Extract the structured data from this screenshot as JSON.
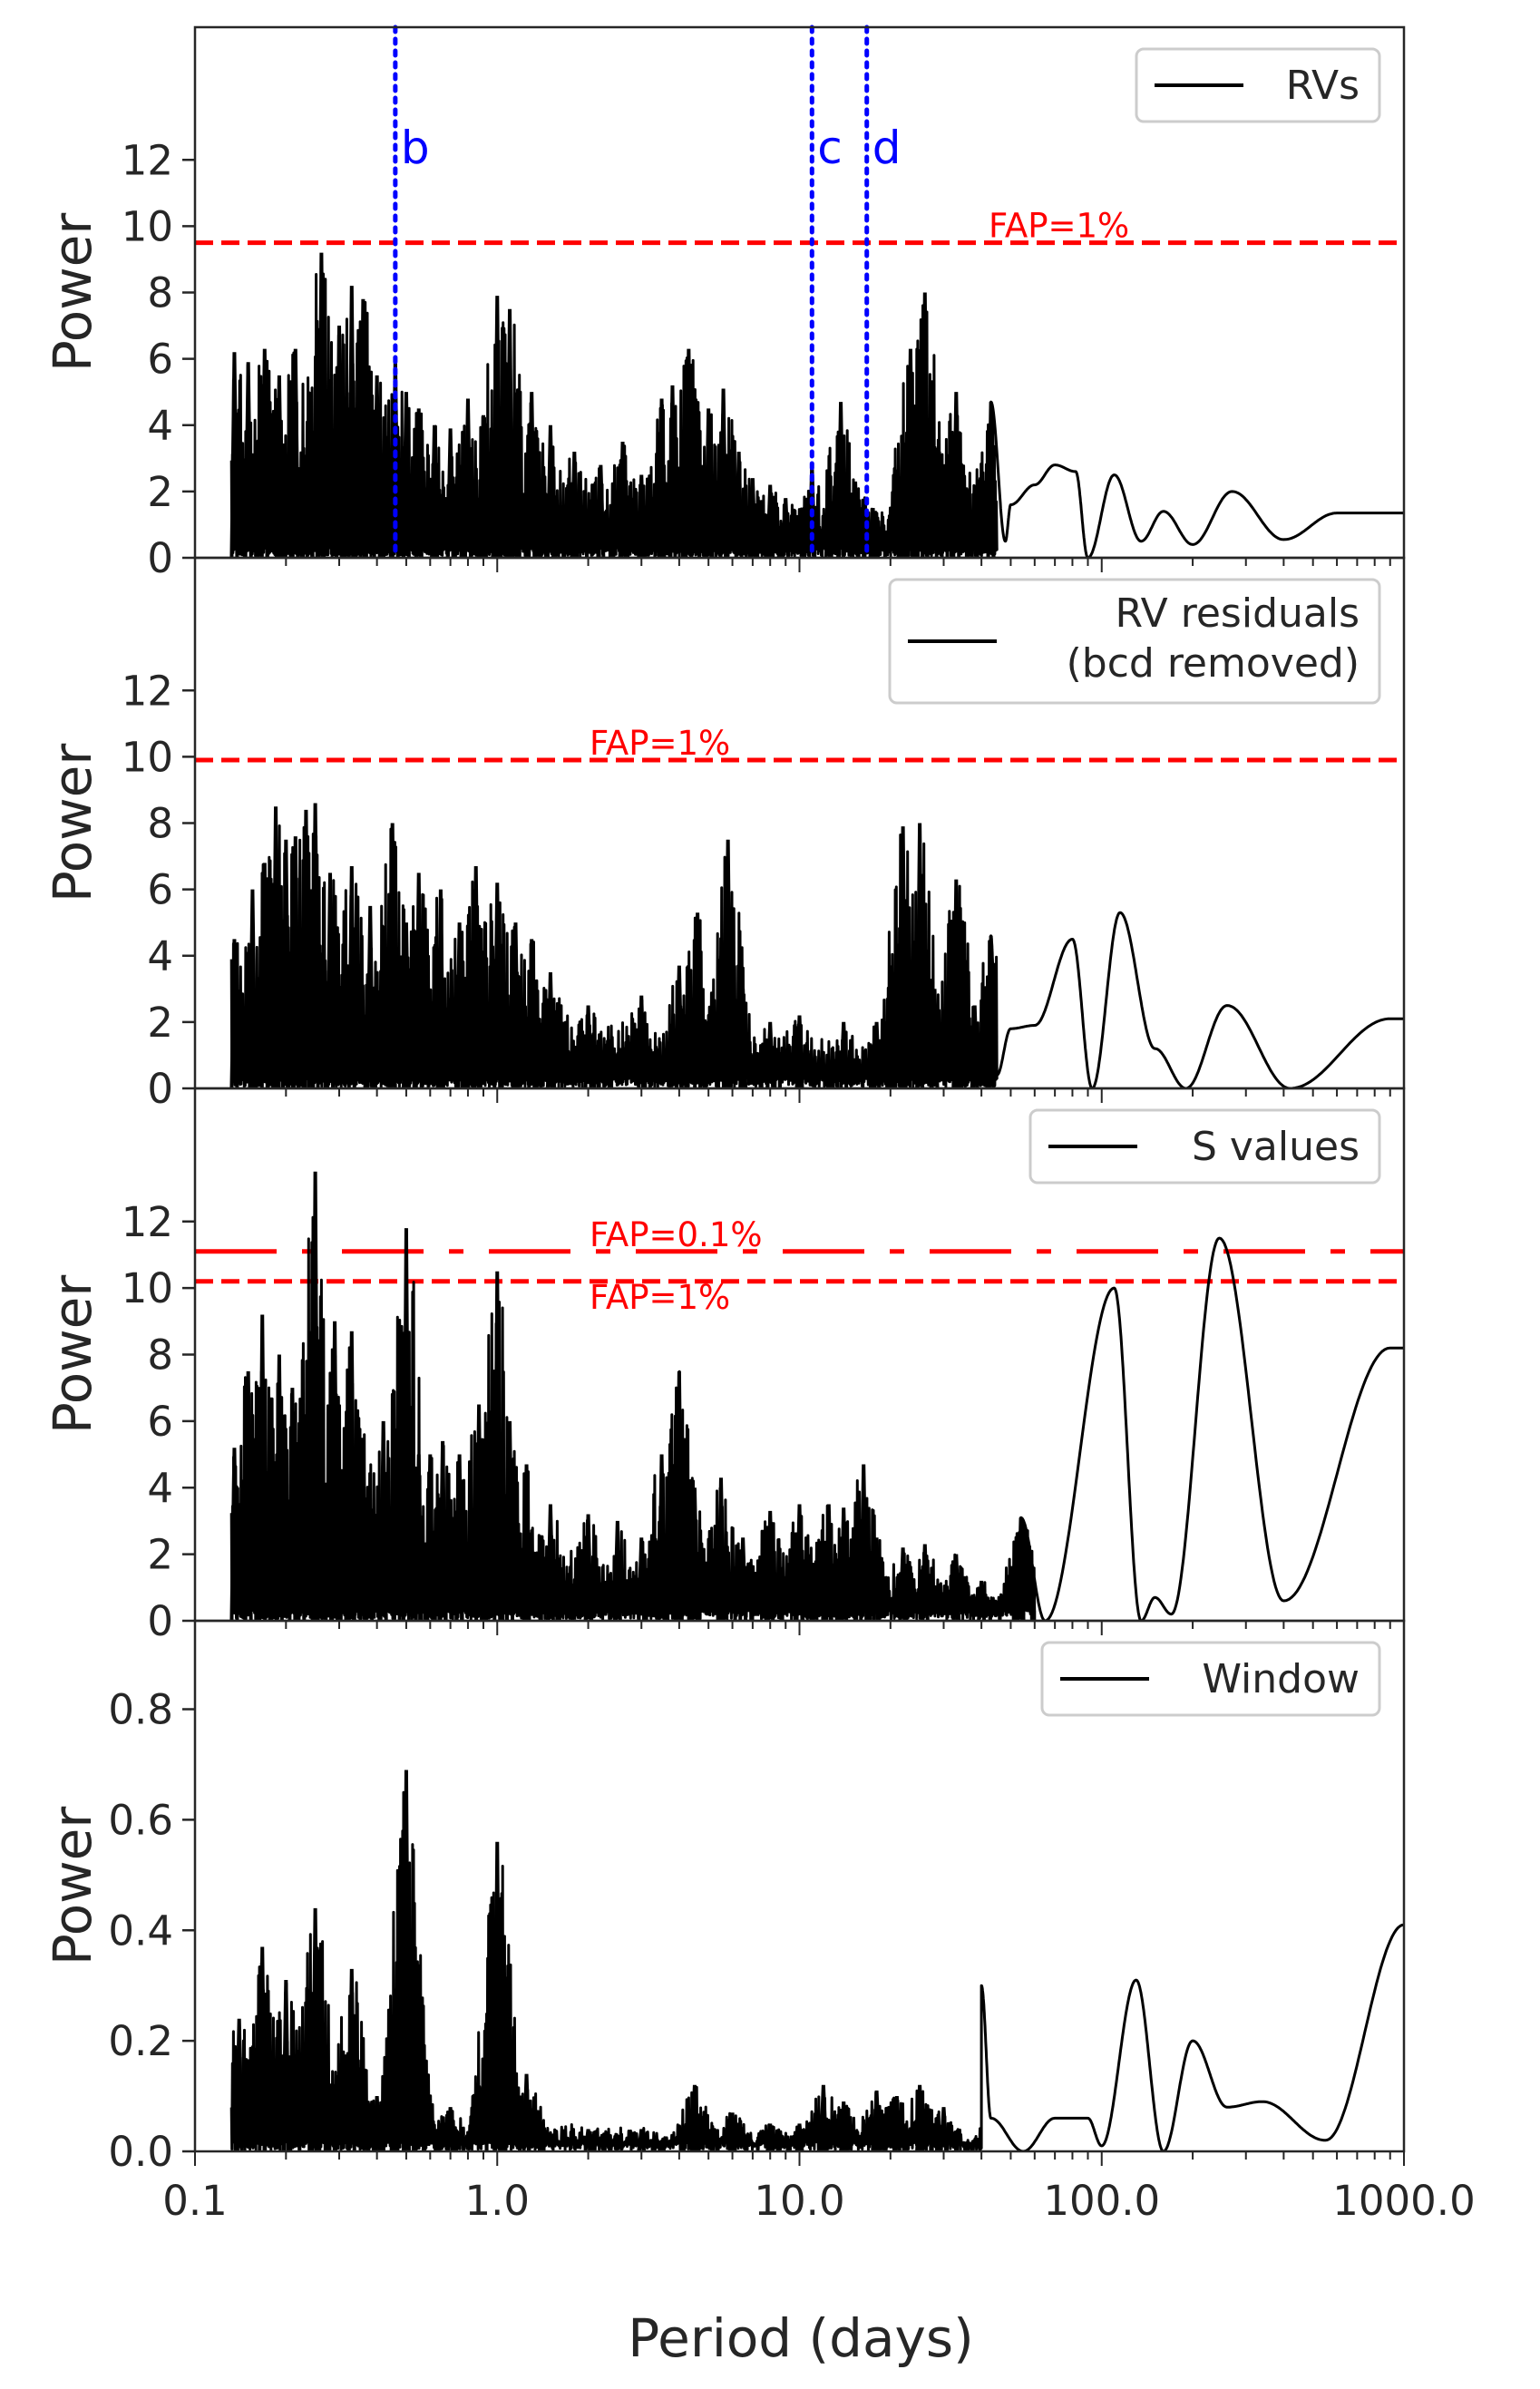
{
  "figure": {
    "xlabel": "Period (days)",
    "x_tick_labels": [
      "0.1",
      "1.0",
      "10.0",
      "100.0",
      "1000.0"
    ]
  },
  "colors": {
    "line": "#000000",
    "fap": "#ff0000",
    "planet_marker": "#0000ff",
    "axes": "#262626",
    "text": "#262626"
  },
  "chart_data": [
    {
      "type": "line",
      "id": "rvs",
      "ylabel": "Power",
      "legend": "RVs",
      "legend_lines": [
        "RVs"
      ],
      "legend_position": "top-right",
      "xscale": "log",
      "xlim": [
        0.1,
        1000
      ],
      "ylim": [
        0,
        16
      ],
      "yticks": [
        0,
        2,
        4,
        6,
        8,
        10,
        12
      ],
      "fap_lines": [
        {
          "label": "FAP=1%",
          "value": 9.5,
          "style": "dashed"
        }
      ],
      "planet_markers": [
        {
          "label": "b",
          "period": 0.46
        },
        {
          "label": "c",
          "period": 11.0
        },
        {
          "label": "d",
          "period": 16.7
        }
      ],
      "peaks": [
        [
          0.135,
          6.2
        ],
        [
          0.15,
          5.9
        ],
        [
          0.17,
          6.3
        ],
        [
          0.19,
          5.5
        ],
        [
          0.215,
          6.3
        ],
        [
          0.24,
          5.0
        ],
        [
          0.262,
          9.2
        ],
        [
          0.3,
          7.0
        ],
        [
          0.33,
          8.2
        ],
        [
          0.36,
          7.8
        ],
        [
          0.4,
          5.5
        ],
        [
          0.46,
          6.0
        ],
        [
          0.5,
          5.0
        ],
        [
          0.55,
          4.5
        ],
        [
          0.62,
          4.0
        ],
        [
          0.7,
          3.9
        ],
        [
          0.8,
          4.8
        ],
        [
          0.9,
          4.3
        ],
        [
          1.0,
          7.9
        ],
        [
          1.1,
          7.5
        ],
        [
          1.3,
          5.0
        ],
        [
          1.5,
          4.0
        ],
        [
          1.8,
          3.2
        ],
        [
          2.2,
          2.8
        ],
        [
          2.6,
          3.5
        ],
        [
          3.0,
          2.5
        ],
        [
          3.5,
          4.8
        ],
        [
          3.8,
          5.2
        ],
        [
          4.3,
          6.3
        ],
        [
          5.0,
          4.5
        ],
        [
          5.6,
          5.1
        ],
        [
          6.3,
          3.2
        ],
        [
          7.0,
          2.4
        ],
        [
          8.0,
          2.2
        ],
        [
          9.0,
          1.8
        ],
        [
          11.0,
          2.8
        ],
        [
          12.5,
          2.0
        ],
        [
          13.7,
          4.7
        ],
        [
          15.3,
          2.3
        ],
        [
          17.5,
          1.5
        ],
        [
          22.0,
          2.5
        ],
        [
          23.3,
          6.3
        ],
        [
          26.0,
          8.0
        ],
        [
          29.0,
          3.2
        ],
        [
          33.0,
          5.0
        ],
        [
          38.0,
          2.2
        ],
        [
          43.0,
          4.7
        ],
        [
          50.0,
          1.6
        ],
        [
          60.0,
          2.2
        ],
        [
          70.0,
          2.8
        ],
        [
          82.0,
          2.6
        ],
        [
          110.0,
          2.5
        ],
        [
          160.0,
          1.4
        ],
        [
          270.0,
          2.0
        ],
        [
          600.0,
          1.35
        ]
      ],
      "troughs": [
        [
          48.0,
          0.5
        ],
        [
          90.0,
          0.0
        ],
        [
          135.0,
          0.5
        ],
        [
          200.0,
          0.4
        ],
        [
          400.0,
          0.55
        ]
      ]
    },
    {
      "type": "line",
      "id": "residuals",
      "ylabel": "Power",
      "legend": "RV residuals (bcd removed)",
      "legend_lines": [
        "RV residuals",
        "(bcd removed)"
      ],
      "legend_position": "top-right",
      "xscale": "log",
      "xlim": [
        0.1,
        1000
      ],
      "ylim": [
        0,
        16
      ],
      "yticks": [
        0,
        2,
        4,
        6,
        8,
        10,
        12
      ],
      "fap_lines": [
        {
          "label": "FAP=1%",
          "value": 9.9,
          "style": "dashed"
        }
      ],
      "peaks": [
        [
          0.135,
          4.5
        ],
        [
          0.155,
          6.0
        ],
        [
          0.17,
          6.8
        ],
        [
          0.185,
          8.5
        ],
        [
          0.2,
          7.5
        ],
        [
          0.215,
          7.6
        ],
        [
          0.233,
          8.4
        ],
        [
          0.25,
          8.6
        ],
        [
          0.28,
          6.5
        ],
        [
          0.33,
          6.7
        ],
        [
          0.38,
          5.5
        ],
        [
          0.45,
          8.0
        ],
        [
          0.5,
          5.0
        ],
        [
          0.55,
          6.5
        ],
        [
          0.65,
          6.0
        ],
        [
          0.75,
          5.0
        ],
        [
          0.85,
          6.7
        ],
        [
          1.0,
          6.2
        ],
        [
          1.15,
          5.0
        ],
        [
          1.3,
          4.5
        ],
        [
          1.5,
          3.5
        ],
        [
          2.0,
          2.5
        ],
        [
          3.0,
          2.8
        ],
        [
          4.0,
          3.7
        ],
        [
          4.6,
          5.3
        ],
        [
          5.5,
          4.0
        ],
        [
          5.8,
          7.5
        ],
        [
          6.5,
          3.0
        ],
        [
          8.0,
          2.0
        ],
        [
          10.0,
          2.2
        ],
        [
          14.0,
          2.0
        ],
        [
          18.0,
          2.0
        ],
        [
          22.0,
          7.9
        ],
        [
          25.0,
          8.0
        ],
        [
          28.0,
          3.0
        ],
        [
          33.0,
          6.3
        ],
        [
          38.0,
          2.5
        ],
        [
          43.0,
          4.6
        ],
        [
          50.0,
          1.8
        ],
        [
          60.0,
          1.9
        ],
        [
          80.0,
          4.5
        ],
        [
          115.0,
          5.3
        ],
        [
          150.0,
          1.2
        ],
        [
          260.0,
          2.5
        ],
        [
          900.0,
          2.1
        ]
      ],
      "troughs": [
        [
          45.0,
          0.4
        ],
        [
          93.0,
          0.0
        ],
        [
          190.0,
          0.0
        ],
        [
          420.0,
          0.0
        ]
      ]
    },
    {
      "type": "line",
      "id": "s_values",
      "ylabel": "Power",
      "legend": "S values",
      "legend_lines": [
        "S values"
      ],
      "legend_position": "top-right",
      "xscale": "log",
      "xlim": [
        0.1,
        1000
      ],
      "ylim": [
        0,
        16
      ],
      "yticks": [
        0,
        2,
        4,
        6,
        8,
        10,
        12
      ],
      "fap_lines": [
        {
          "label": "FAP=0.1%",
          "value": 11.1,
          "style": "dashdot"
        },
        {
          "label": "FAP=1%",
          "value": 10.2,
          "style": "dashed"
        }
      ],
      "peaks": [
        [
          0.135,
          5.2
        ],
        [
          0.15,
          7.5
        ],
        [
          0.167,
          9.2
        ],
        [
          0.19,
          8.0
        ],
        [
          0.21,
          7.0
        ],
        [
          0.225,
          6.0
        ],
        [
          0.25,
          13.5
        ],
        [
          0.29,
          9.0
        ],
        [
          0.33,
          8.7
        ],
        [
          0.36,
          5.5
        ],
        [
          0.42,
          6.0
        ],
        [
          0.5,
          11.8
        ],
        [
          0.55,
          5.0
        ],
        [
          0.6,
          5.0
        ],
        [
          0.66,
          5.4
        ],
        [
          0.75,
          5.0
        ],
        [
          0.87,
          6.5
        ],
        [
          1.0,
          10.5
        ],
        [
          1.1,
          6.0
        ],
        [
          1.25,
          4.7
        ],
        [
          1.5,
          3.5
        ],
        [
          2.0,
          3.2
        ],
        [
          2.5,
          3.0
        ],
        [
          3.0,
          2.5
        ],
        [
          3.5,
          5.0
        ],
        [
          4.0,
          7.5
        ],
        [
          4.5,
          4.0
        ],
        [
          5.5,
          4.3
        ],
        [
          6.5,
          2.5
        ],
        [
          8.0,
          3.3
        ],
        [
          10.0,
          3.5
        ],
        [
          12.5,
          3.5
        ],
        [
          14.0,
          3.4
        ],
        [
          16.3,
          4.7
        ],
        [
          18.0,
          2.5
        ],
        [
          22.0,
          2.2
        ],
        [
          26.0,
          2.3
        ],
        [
          33.0,
          2.0
        ],
        [
          40.0,
          1.2
        ],
        [
          54.0,
          3.1
        ],
        [
          110.0,
          10.0
        ],
        [
          150.0,
          0.7
        ],
        [
          245.0,
          11.5
        ],
        [
          900.0,
          8.2
        ]
      ],
      "troughs": [
        [
          45.0,
          0.0
        ],
        [
          65.0,
          0.0
        ],
        [
          135.0,
          0.0
        ],
        [
          170.0,
          0.2
        ],
        [
          400.0,
          0.6
        ]
      ]
    },
    {
      "type": "line",
      "id": "window",
      "ylabel": "Power",
      "legend": "Window",
      "legend_lines": [
        "Window"
      ],
      "legend_position": "top-right",
      "xscale": "log",
      "xlim": [
        0.1,
        1000
      ],
      "ylim": [
        0,
        0.96
      ],
      "yticks": [
        0.0,
        0.2,
        0.4,
        0.6,
        0.8
      ],
      "fap_lines": [],
      "peaks": [
        [
          0.14,
          0.24
        ],
        [
          0.167,
          0.37
        ],
        [
          0.2,
          0.31
        ],
        [
          0.25,
          0.44
        ],
        [
          0.33,
          0.33
        ],
        [
          0.5,
          0.69
        ],
        [
          1.0,
          0.56
        ],
        [
          1.25,
          0.14
        ],
        [
          0.4,
          0.1
        ],
        [
          0.7,
          0.08
        ],
        [
          2.0,
          0.04
        ],
        [
          3.0,
          0.04
        ],
        [
          4.5,
          0.12
        ],
        [
          6.0,
          0.07
        ],
        [
          8.0,
          0.05
        ],
        [
          10.0,
          0.05
        ],
        [
          12.0,
          0.12
        ],
        [
          14.0,
          0.09
        ],
        [
          18.0,
          0.11
        ],
        [
          21.0,
          0.1
        ],
        [
          25.0,
          0.12
        ],
        [
          30.0,
          0.08
        ],
        [
          43.0,
          0.06
        ],
        [
          70.0,
          0.06
        ],
        [
          90.0,
          0.06
        ],
        [
          130.0,
          0.31
        ],
        [
          200.0,
          0.2
        ],
        [
          340.0,
          0.09
        ],
        [
          1000.0,
          0.41
        ]
      ],
      "troughs": [
        [
          55.0,
          0.0
        ],
        [
          100.0,
          0.01
        ],
        [
          160.0,
          0.0
        ],
        [
          260.0,
          0.08
        ],
        [
          550.0,
          0.02
        ]
      ]
    }
  ]
}
